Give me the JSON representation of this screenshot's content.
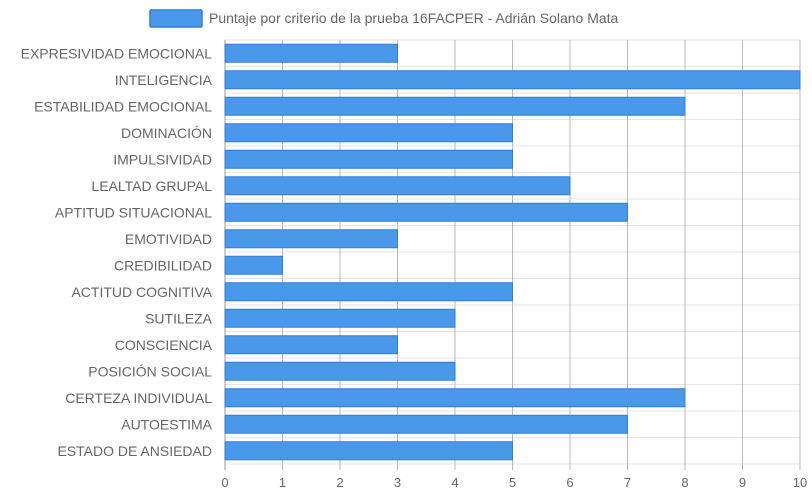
{
  "chart_data": {
    "type": "bar",
    "orientation": "horizontal",
    "categories": [
      "EXPRESIVIDAD EMOCIONAL",
      "INTELIGENCIA",
      "ESTABILIDAD EMOCIONAL",
      "DOMINACIÓN",
      "IMPULSIVIDAD",
      "LEALTAD GRUPAL",
      "APTITUD SITUACIONAL",
      "EMOTIVIDAD",
      "CREDIBILIDAD",
      "ACTITUD COGNITIVA",
      "SUTILEZA",
      "CONSCIENCIA",
      "POSICIÓN SOCIAL",
      "CERTEZA INDIVIDUAL",
      "AUTOESTIMA",
      "ESTADO DE ANSIEDAD"
    ],
    "series": [
      {
        "name": "Puntaje por criterio de la prueba 16FACPER - Adrián Solano Mata",
        "values": [
          3,
          10,
          8,
          5,
          5,
          6,
          7,
          3,
          1,
          5,
          4,
          3,
          4,
          8,
          7,
          5
        ],
        "color": "#4a98ea"
      }
    ],
    "xlim": [
      0,
      10
    ],
    "xticks": [
      "0",
      "1",
      "2",
      "3",
      "4",
      "5",
      "6",
      "7",
      "8",
      "9",
      "10"
    ],
    "grid": true,
    "legend_position": "top"
  }
}
